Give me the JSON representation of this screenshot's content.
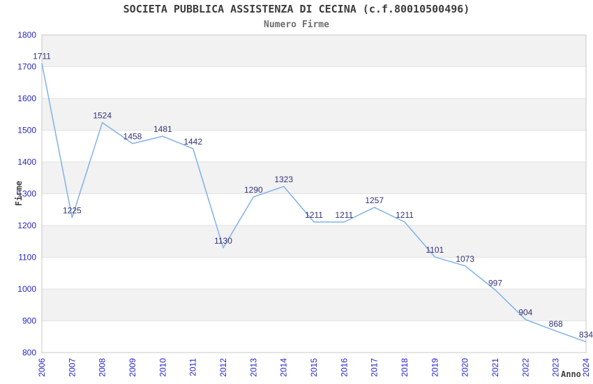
{
  "chart_data": {
    "type": "line",
    "title": "SOCIETA PUBBLICA ASSISTENZA DI CECINA (c.f.80010500496)",
    "subtitle": "Numero Firme",
    "xlabel": "Anno",
    "ylabel": "Firme",
    "categories": [
      "2006",
      "2007",
      "2008",
      "2009",
      "2010",
      "2011",
      "2012",
      "2013",
      "2014",
      "2015",
      "2016",
      "2017",
      "2018",
      "2019",
      "2020",
      "2021",
      "2022",
      "2023",
      "2024"
    ],
    "values": [
      1711,
      1225,
      1524,
      1458,
      1481,
      1442,
      1130,
      1290,
      1323,
      1211,
      1211,
      1257,
      1211,
      1101,
      1073,
      997,
      904,
      868,
      834
    ],
    "ylim": [
      800,
      1800
    ],
    "ytick_step": 100,
    "show_point_labels": true,
    "legend_position": "none",
    "grid": "horizontal-bands",
    "x_tick_rotation": -90
  },
  "style": {
    "line_color": "#7fb1e8",
    "point_label_color": "#323278",
    "tick_label_color": "#2525cc",
    "band_color": "#f2f2f2",
    "band_alt_color": "#ffffff",
    "grid_color": "#e2e2e2",
    "border_color": "#c8c8c8",
    "title_color": "#3c3c3c",
    "subtitle_color": "#6e6e6e",
    "axis_title_color": "#404040",
    "background": "#ffffff"
  }
}
